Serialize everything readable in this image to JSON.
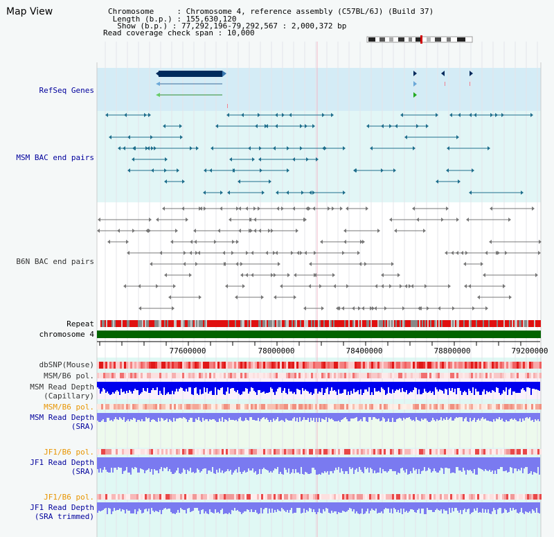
{
  "title": "Map View",
  "info": {
    "chromosome_label": "Chromosome",
    "chromosome_value": "Chromosome 4, reference assembly (C57BL/6J) (Build 37)",
    "length_label": "Length (b.p.)",
    "length_value": "155,630,120",
    "show_label": "Show (b.p.)",
    "show_value": "77,292,196-79,292,567 : 2,000,372 bp",
    "coverage_label": "Read coverage check span",
    "coverage_value": "10,000"
  },
  "tracks": {
    "refseq": "RefSeq Genes",
    "msm_bac": "MSM BAC end pairs",
    "b6n_bac": "B6N BAC end pairs",
    "repeat": "Repeat",
    "chromosome": "chromosome 4",
    "dbsnp": "dbSNP(Mouse)",
    "msm_b6_pol": "MSM/B6 pol.",
    "msm_depth_cap_1": "MSM Read Depth",
    "msm_depth_cap_2": "(Capillary)",
    "msm_b6_pol2": "MSM/B6 pol.",
    "msm_depth_sra_1": "MSM Read Depth",
    "msm_depth_sra_2": "(SRA)",
    "jf1_b6_pol": "JF1/B6 pol.",
    "jf1_depth_1": "JF1 Read Depth",
    "jf1_depth_2": "(SRA)",
    "jf1_b6_pol2": "JF1/B6 pol.",
    "jf1_trim_1": "JF1 Read Depth",
    "jf1_trim_2": "(SRA trimmed)"
  },
  "axis": {
    "ticks": [
      "77600000",
      "78000000",
      "78400000",
      "78800000",
      "79200000"
    ]
  },
  "colors": {
    "refseq_bg": "#d4ecf6",
    "msm_bg": "#e2f6f6",
    "gene_dark": "#002a5c",
    "gene_green": "#2e8b2e",
    "msm_feature": "#1f6e8c",
    "b6n_feature": "#777777",
    "repeat_red": "#e01010",
    "chromosome_green": "#006400",
    "depth_blue": "#0000ee",
    "depth_light": "#7a7af0"
  }
}
